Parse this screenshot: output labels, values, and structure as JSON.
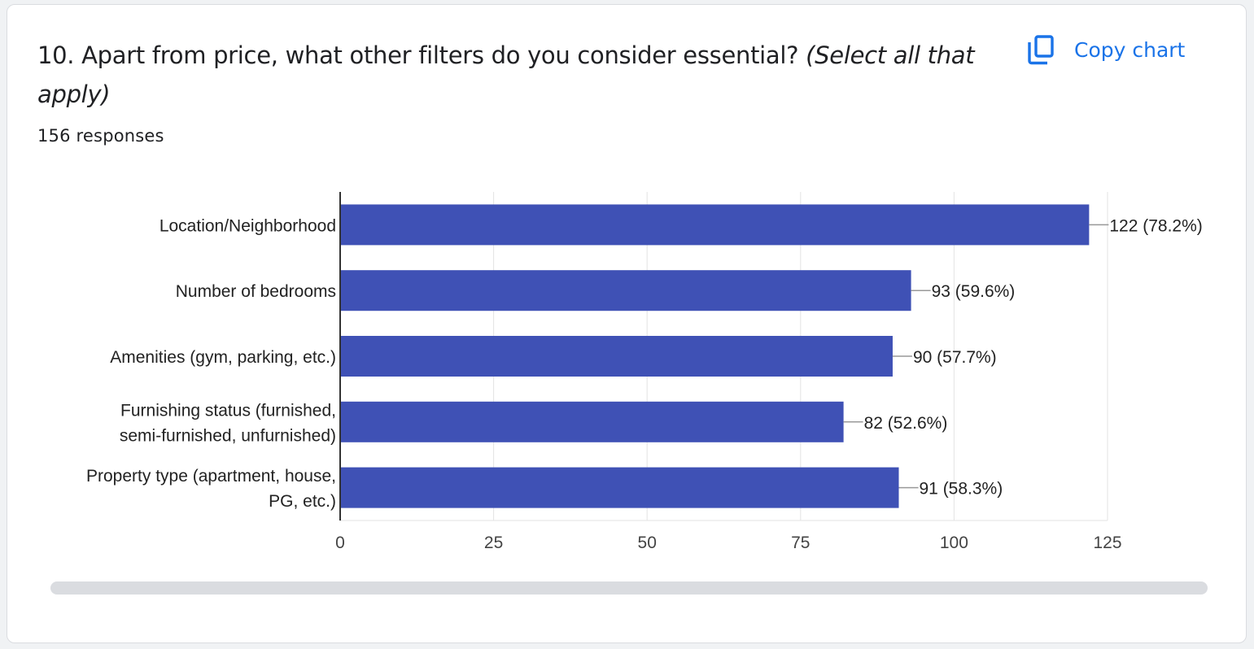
{
  "question": {
    "text": "10. Apart from price, what other filters do you consider essential?",
    "hint": "(Select all that apply)",
    "responses": "156 responses"
  },
  "copy_button": {
    "label": "Copy chart",
    "icon": "copy-icon"
  },
  "colors": {
    "bar": "#3f51b5",
    "accent": "#1a73e8"
  },
  "chart_data": {
    "type": "bar",
    "orientation": "horizontal",
    "categories": [
      "Location/Neighborhood",
      "Number of bedrooms",
      "Amenities (gym, parking, etc.)",
      "Furnishing status (furnished, semi-furnished, unfurnished)",
      "Property type (apartment, house, PG, etc.)"
    ],
    "category_lines": [
      [
        "Location/Neighborhood"
      ],
      [
        "Number of bedrooms"
      ],
      [
        "Amenities (gym, parking, etc.)"
      ],
      [
        "Furnishing status (furnished,",
        "semi-furnished, unfurnished)"
      ],
      [
        "Property type (apartment, house,",
        "PG, etc.)"
      ]
    ],
    "values": [
      122,
      93,
      90,
      82,
      91
    ],
    "data_labels": [
      "122 (78.2%)",
      "93 (59.6%)",
      "90 (57.7%)",
      "82 (52.6%)",
      "91 (58.3%)"
    ],
    "xlim": [
      0,
      125
    ],
    "xticks": [
      0,
      25,
      50,
      75,
      100,
      125
    ],
    "grid": true
  }
}
